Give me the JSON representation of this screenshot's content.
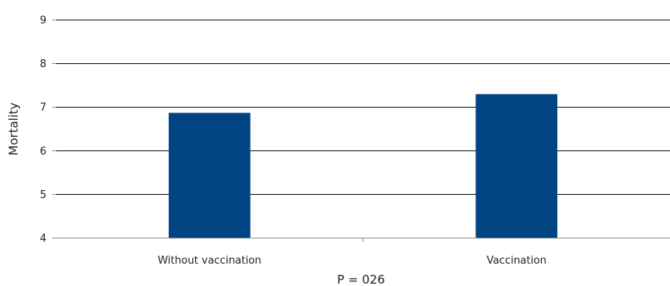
{
  "chart_data": {
    "type": "bar",
    "categories": [
      "Without vaccination",
      "Vaccination"
    ],
    "values": [
      6.87,
      7.3
    ],
    "ylabel": "Mortality",
    "xlabel": "",
    "ylim": [
      4,
      9
    ],
    "yticks": [
      4,
      5,
      6,
      7,
      8,
      9
    ],
    "grid": true,
    "annotation": "P = 026",
    "colors": {
      "bar": "#004482",
      "grid": "#000000",
      "axis": "#888888"
    }
  }
}
